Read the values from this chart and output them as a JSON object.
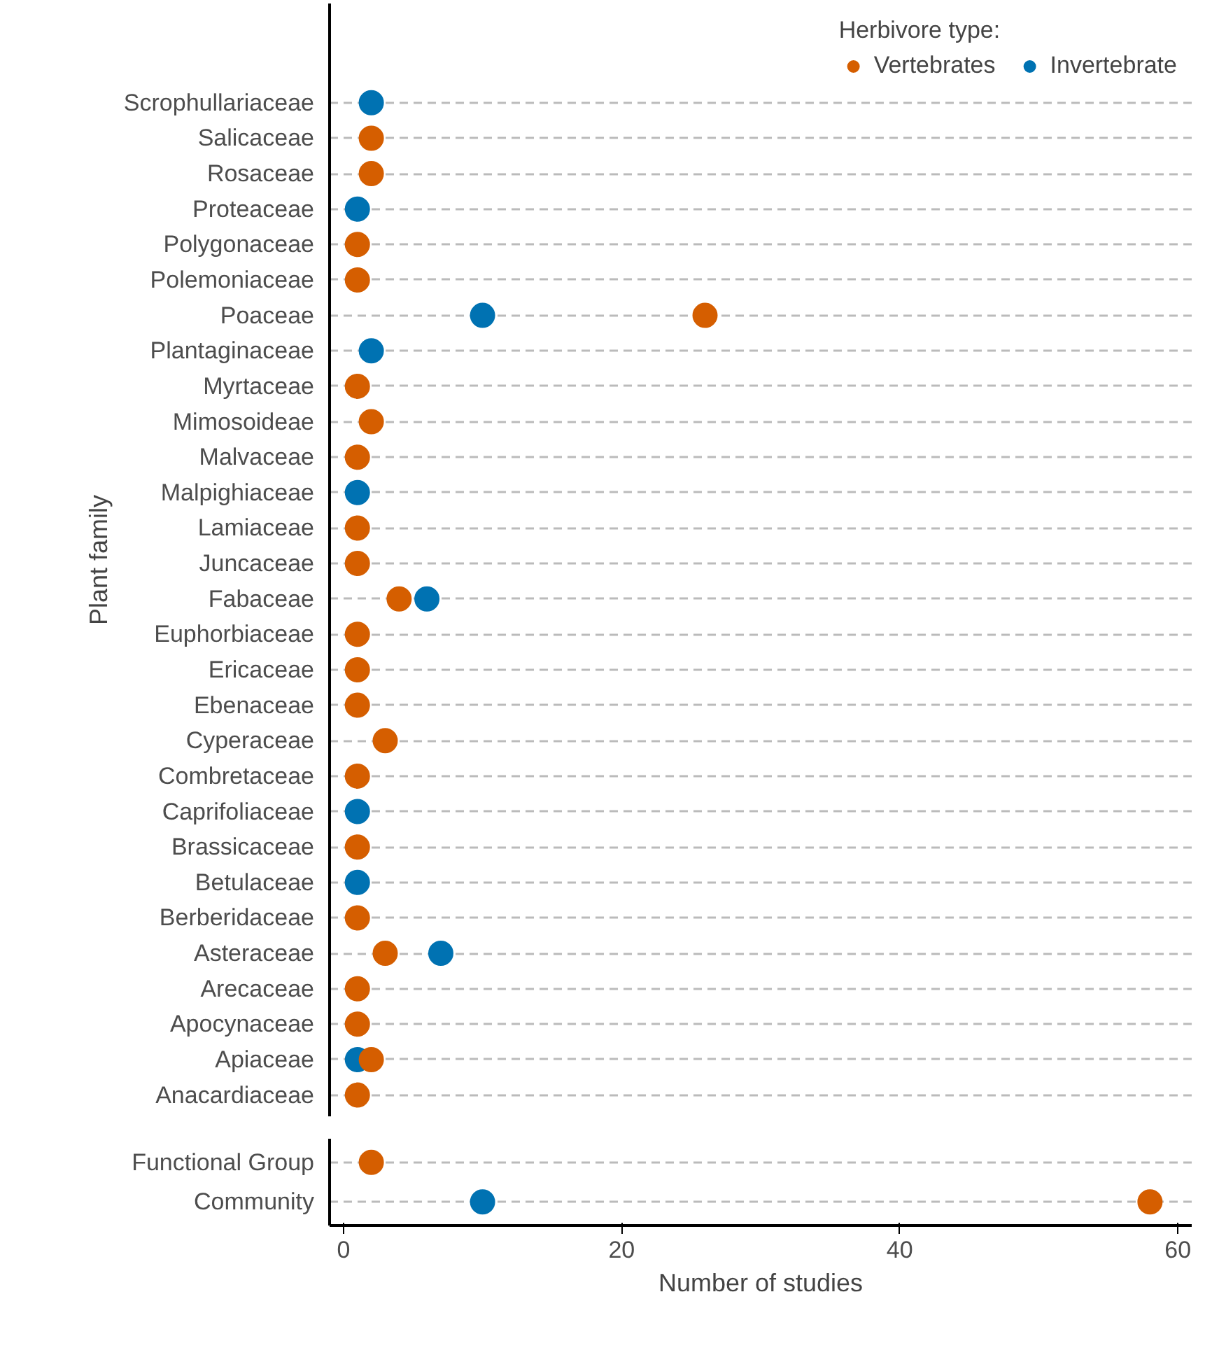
{
  "chart_data": [
    {
      "type": "scatter",
      "orientation": "horizontal",
      "ylabel": "Plant family",
      "legend_title": "Herbivore type:",
      "legend": "top",
      "grid": "y",
      "marker": "circle",
      "tick_labels": "y",
      "xlim": [
        -1,
        61
      ],
      "categories": [
        "Scrophullariaceae",
        "Salicaceae",
        "Rosaceae",
        "Proteaceae",
        "Polygonaceae",
        "Polemoniaceae",
        "Poaceae",
        "Plantaginaceae",
        "Myrtaceae",
        "Mimosoideae",
        "Malvaceae",
        "Malpighiaceae",
        "Lamiaceae",
        "Juncaceae",
        "Fabaceae",
        "Euphorbiaceae",
        "Ericaceae",
        "Ebenaceae",
        "Cyperaceae",
        "Combretaceae",
        "Caprifoliaceae",
        "Brassicaceae",
        "Betulaceae",
        "Berberidaceae",
        "Asteraceae",
        "Arecaceae",
        "Apocynaceae",
        "Apiaceae",
        "Anacardiaceae"
      ],
      "series": [
        {
          "name": "Vertebrates",
          "color": "#d55e00",
          "values": [
            null,
            2,
            2,
            null,
            1,
            1,
            26,
            null,
            1,
            2,
            1,
            null,
            1,
            1,
            4,
            1,
            1,
            1,
            3,
            1,
            null,
            1,
            null,
            1,
            3,
            1,
            1,
            2,
            1
          ]
        },
        {
          "name": "Invertebrate",
          "color": "#0072b2",
          "values": [
            2,
            null,
            null,
            1,
            null,
            null,
            10,
            2,
            null,
            null,
            null,
            1,
            null,
            null,
            6,
            null,
            null,
            null,
            null,
            null,
            1,
            null,
            1,
            null,
            7,
            null,
            null,
            1,
            null
          ]
        }
      ]
    },
    {
      "type": "scatter",
      "orientation": "horizontal",
      "xlabel": "Number of studies",
      "grid": "y",
      "marker": "circle",
      "xlim": [
        -1,
        61
      ],
      "xticks": [
        0,
        20,
        40,
        60
      ],
      "categories": [
        "Functional Group",
        "Community"
      ],
      "series": [
        {
          "color": "#d55e00",
          "values": [
            2,
            58
          ]
        },
        {
          "color": "#0072b2",
          "values": [
            null,
            10
          ]
        }
      ]
    }
  ]
}
